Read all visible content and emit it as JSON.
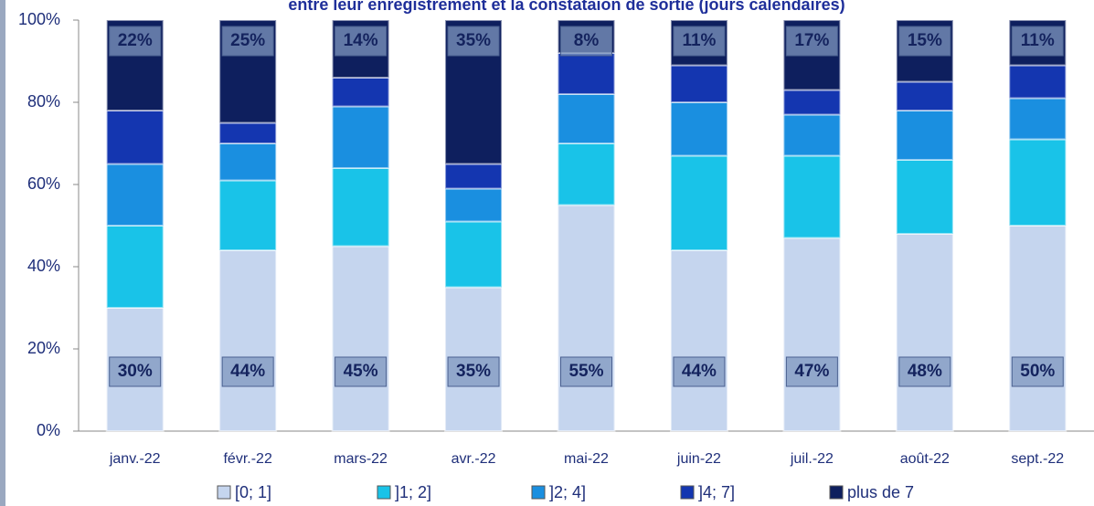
{
  "chart_data": {
    "type": "stacked_bar",
    "title": "entre leur enregistrement et la constataion de sortie (jours calendaires)",
    "categories": [
      "janv.-22",
      "févr.-22",
      "mars-22",
      "avr.-22",
      "mai-22",
      "juin-22",
      "juil.-22",
      "août-22",
      "sept.-22"
    ],
    "series": [
      {
        "name": "[0; 1]",
        "color": "#c5d5ee",
        "values": [
          30,
          44,
          45,
          35,
          55,
          44,
          47,
          48,
          50
        ],
        "value_labels": [
          "30%",
          "44%",
          "45%",
          "35%",
          "55%",
          "44%",
          "47%",
          "48%",
          "50%"
        ]
      },
      {
        "name": "]1; 2]",
        "color": "#19c3e8",
        "values": [
          20,
          17,
          19,
          16,
          15,
          23,
          20,
          18,
          21
        ]
      },
      {
        "name": "]2; 4]",
        "color": "#1a8fe0",
        "values": [
          15,
          9,
          15,
          8,
          12,
          13,
          10,
          12,
          10
        ]
      },
      {
        "name": "]4; 7]",
        "color": "#1436b0",
        "values": [
          13,
          5,
          7,
          6,
          10,
          9,
          6,
          7,
          8
        ]
      },
      {
        "name": "plus de 7",
        "color": "#0e1f5e",
        "values": [
          22,
          25,
          14,
          35,
          8,
          11,
          17,
          15,
          11
        ],
        "value_labels": [
          "22%",
          "25%",
          "14%",
          "35%",
          "8%",
          "11%",
          "17%",
          "15%",
          "11%"
        ]
      }
    ],
    "ylim": [
      0,
      100
    ],
    "yticks": [
      {
        "value": 0,
        "label": "0%"
      },
      {
        "value": 20,
        "label": "20%"
      },
      {
        "value": 40,
        "label": "40%"
      },
      {
        "value": 60,
        "label": "60%"
      },
      {
        "value": 80,
        "label": "80%"
      },
      {
        "value": 100,
        "label": "100%"
      }
    ],
    "legend": "bottom"
  }
}
